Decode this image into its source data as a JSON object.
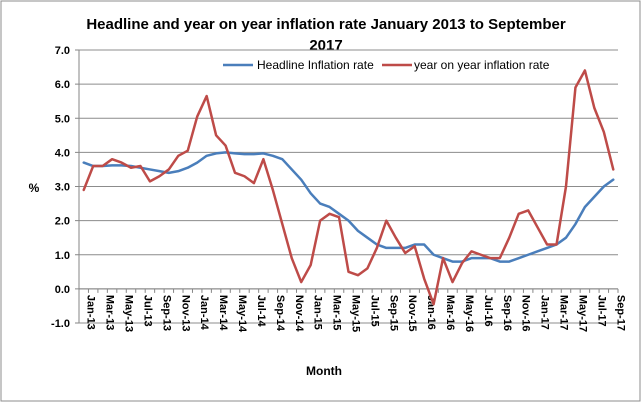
{
  "chart_data": {
    "type": "line",
    "title_lines": [
      "Headline and year on year inflation rate January 2013 to September",
      "2017"
    ],
    "xlabel": "Month",
    "ylabel": "%",
    "ylim": [
      -1.0,
      7.0
    ],
    "yticks": [
      "-1.0",
      "0.0",
      "1.0",
      "2.0",
      "3.0",
      "4.0",
      "5.0",
      "6.0",
      "7.0"
    ],
    "grid": true,
    "legend_position": "top",
    "x": [
      "Jan-13",
      "Feb-13",
      "Mar-13",
      "Apr-13",
      "May-13",
      "Jun-13",
      "Jul-13",
      "Aug-13",
      "Sep-13",
      "Oct-13",
      "Nov-13",
      "Dec-13",
      "Jan-14",
      "Feb-14",
      "Mar-14",
      "Apr-14",
      "May-14",
      "Jun-14",
      "Jul-14",
      "Aug-14",
      "Sep-14",
      "Oct-14",
      "Nov-14",
      "Dec-14",
      "Jan-15",
      "Feb-15",
      "Mar-15",
      "Apr-15",
      "May-15",
      "Jun-15",
      "Jul-15",
      "Aug-15",
      "Sep-15",
      "Oct-15",
      "Nov-15",
      "Dec-15",
      "Jan-16",
      "Feb-16",
      "Mar-16",
      "Apr-16",
      "May-16",
      "Jun-16",
      "Jul-16",
      "Aug-16",
      "Sep-16",
      "Oct-16",
      "Nov-16",
      "Dec-16",
      "Jan-17",
      "Feb-17",
      "Mar-17",
      "Apr-17",
      "May-17",
      "Jun-17",
      "Jul-17",
      "Aug-17",
      "Sep-17"
    ],
    "x_tick_labels": [
      "Jan-13",
      "Mar-13",
      "May-13",
      "Jul-13",
      "Sep-13",
      "Nov-13",
      "Jan-14",
      "Mar-14",
      "May-14",
      "Jul-14",
      "Sep-14",
      "Nov-14",
      "Jan-15",
      "Mar-15",
      "May-15",
      "Jul-15",
      "Sep-15",
      "Nov-15",
      "Jan-16",
      "Mar-16",
      "May-16",
      "Jul-16",
      "Sep-16",
      "Nov-16",
      "Jan-17",
      "Mar-17",
      "May-17",
      "Jul-17",
      "Sep-17"
    ],
    "series": [
      {
        "name": "Headline Inflation rate",
        "color": "#4A7EBB",
        "values": [
          3.7,
          3.6,
          3.6,
          3.62,
          3.62,
          3.6,
          3.55,
          3.5,
          3.45,
          3.4,
          3.45,
          3.55,
          3.7,
          3.9,
          3.97,
          4.0,
          3.97,
          3.95,
          3.95,
          3.97,
          3.9,
          3.8,
          3.5,
          3.2,
          2.8,
          2.5,
          2.4,
          2.2,
          2.0,
          1.7,
          1.5,
          1.3,
          1.2,
          1.2,
          1.2,
          1.3,
          1.3,
          1.0,
          0.9,
          0.8,
          0.8,
          0.9,
          0.9,
          0.9,
          0.8,
          0.8,
          0.9,
          1.0,
          1.1,
          1.2,
          1.3,
          1.5,
          1.9,
          2.4,
          2.7,
          3.0,
          3.2
        ]
      },
      {
        "name": "year on year inflation rate",
        "color": "#BE4B48",
        "values": [
          2.9,
          3.6,
          3.6,
          3.8,
          3.7,
          3.55,
          3.6,
          3.15,
          3.3,
          3.5,
          3.9,
          4.05,
          5.05,
          5.65,
          4.5,
          4.2,
          3.4,
          3.3,
          3.1,
          3.8,
          2.9,
          1.9,
          0.9,
          0.2,
          0.7,
          2.0,
          2.2,
          2.1,
          0.5,
          0.4,
          0.6,
          1.2,
          2.0,
          1.5,
          1.05,
          1.25,
          0.3,
          -0.45,
          0.9,
          0.2,
          0.75,
          1.1,
          1.0,
          0.9,
          0.9,
          1.5,
          2.2,
          2.3,
          1.8,
          1.3,
          1.3,
          3.0,
          5.9,
          6.4,
          5.3,
          4.6,
          3.5
        ]
      }
    ]
  }
}
